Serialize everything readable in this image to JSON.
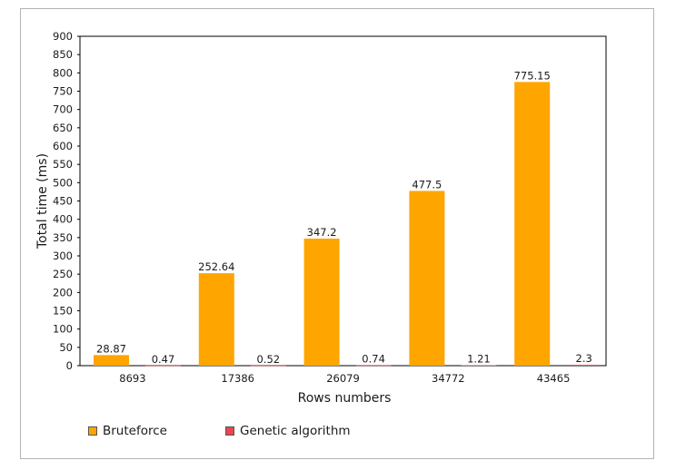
{
  "chart_data": {
    "type": "bar",
    "categories": [
      "8693",
      "17386",
      "26079",
      "34772",
      "43465"
    ],
    "series": [
      {
        "name": "Bruteforce",
        "values": [
          28.87,
          252.64,
          347.2,
          477.5,
          775.15
        ],
        "color": "#ffa500"
      },
      {
        "name": "Genetic algorithm",
        "values": [
          0.47,
          0.52,
          0.74,
          1.21,
          2.3
        ],
        "color": "#e8474f"
      }
    ],
    "data_labels": [
      [
        "28.87",
        "252.64",
        "347.2",
        "477.5",
        "775.15"
      ],
      [
        "0.47",
        "0.52",
        "0.74",
        "1.21",
        "2.3"
      ]
    ],
    "xlabel": "Rows numbers",
    "ylabel": "Total time (ms)",
    "ylim": [
      0,
      900
    ],
    "yticks": [
      "0",
      "50",
      "100",
      "150",
      "200",
      "250",
      "300",
      "350",
      "400",
      "450",
      "500",
      "550",
      "600",
      "650",
      "700",
      "750",
      "800",
      "850",
      "900"
    ],
    "grid": false,
    "legend_position": "bottom-left"
  }
}
